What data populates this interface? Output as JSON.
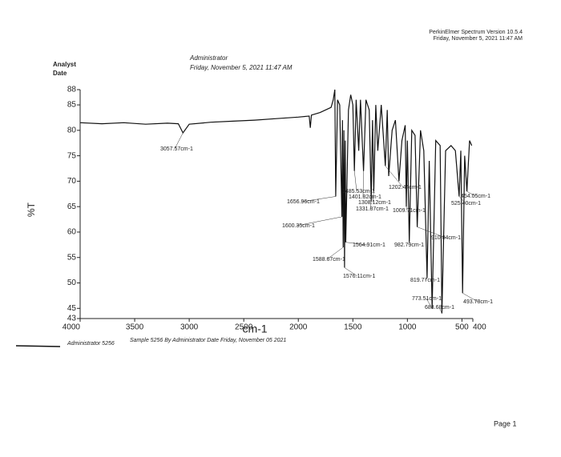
{
  "header": {
    "software": "PerkinElmer Spectrum Version 10.5.4",
    "datetime": "Friday, November 5, 2021 11:47 AM"
  },
  "info": {
    "analyst_label": "Analyst",
    "date_label": "Date",
    "analyst": "Administrator",
    "date": "Friday, November 5, 2021 11:47 AM"
  },
  "footer": {
    "page": "Page 1"
  },
  "chart_data": {
    "type": "line",
    "xlabel": "cm-1",
    "ylabel": "%T",
    "legend_note": "Sample 5256 By Administrator Date Friday, November 05 2021",
    "xlim": [
      4000,
      400
    ],
    "ylim": [
      43,
      88
    ],
    "xticks": [
      4000,
      3500,
      3000,
      2500,
      2000,
      1500,
      1000,
      500,
      400
    ],
    "yticks": [
      43,
      45,
      50,
      55,
      60,
      65,
      70,
      75,
      80,
      85,
      88
    ],
    "x": [
      4000,
      3800,
      3600,
      3400,
      3200,
      3100,
      3057.57,
      3000,
      2800,
      2600,
      2400,
      2200,
      2000,
      1900,
      1890,
      1880,
      1800,
      1700,
      1680,
      1665,
      1656.96,
      1640,
      1620,
      1600.35,
      1595,
      1588.67,
      1582,
      1576.11,
      1570,
      1564.91,
      1540,
      1520,
      1500,
      1485.53,
      1470,
      1446,
      1430,
      1401.82,
      1380,
      1350,
      1331.87,
      1320,
      1308.12,
      1290,
      1271,
      1240,
      1202.44,
      1185,
      1171.41,
      1140,
      1110,
      1077.1,
      1050,
      1020,
      1009.71,
      1000,
      982.79,
      960,
      930,
      910.04,
      880,
      850,
      819.77,
      800,
      773.51,
      740,
      700,
      683.68,
      650,
      600,
      560,
      525.4,
      510,
      493.78,
      475,
      454.05,
      430,
      410
    ],
    "series": [
      {
        "name": "Administrator 5256",
        "color": "#111111",
        "values": [
          81.5,
          81.3,
          81.5,
          81.2,
          81.4,
          81.3,
          79.5,
          81.2,
          81.6,
          81.8,
          82,
          82.3,
          82.6,
          82.8,
          80.5,
          83,
          83.5,
          84.5,
          86,
          88,
          67,
          86,
          85,
          63,
          82,
          57,
          80,
          53,
          78,
          58,
          84,
          87,
          85,
          72,
          86,
          76,
          86,
          72,
          86,
          84,
          66,
          82,
          68,
          85,
          76,
          85,
          73,
          84,
          71,
          80,
          82,
          70,
          78,
          81,
          65,
          78,
          58,
          80,
          79,
          61,
          80,
          76,
          51,
          74,
          45,
          78,
          77,
          44,
          76,
          77,
          76,
          67,
          76,
          48,
          75,
          68,
          78,
          77
        ]
      }
    ],
    "annotations": [
      {
        "label": "3057.57cm-1",
        "x": 3057.57,
        "y": 79.5
      },
      {
        "label": "1656.96cm-1",
        "x": 1656.96,
        "y": 67
      },
      {
        "label": "1600.35cm-1",
        "x": 1600.35,
        "y": 63
      },
      {
        "label": "1588.67cm-1",
        "x": 1588.67,
        "y": 57
      },
      {
        "label": "1576.11cm-1",
        "x": 1576.11,
        "y": 53
      },
      {
        "label": "1564.91cm-1",
        "x": 1564.91,
        "y": 58
      },
      {
        "label": "1485.53cm-1",
        "x": 1485.53,
        "y": 72
      },
      {
        "label": "1401.82cm-1",
        "x": 1401.82,
        "y": 72
      },
      {
        "label": "1331.87cm-1",
        "x": 1331.87,
        "y": 66
      },
      {
        "label": "1308.12cm-1",
        "x": 1308.12,
        "y": 68
      },
      {
        "label": "1202.44cm-1",
        "x": 1202.44,
        "y": 73
      },
      {
        "label": "1009.71cm-1",
        "x": 1009.71,
        "y": 65
      },
      {
        "label": "982.79cm-1",
        "x": 982.79,
        "y": 58
      },
      {
        "label": "910.04cm-1",
        "x": 910.04,
        "y": 61
      },
      {
        "label": "819.77cm-1",
        "x": 819.77,
        "y": 51
      },
      {
        "label": "773.51cm-1",
        "x": 773.51,
        "y": 45
      },
      {
        "label": "683.68cm-1",
        "x": 683.68,
        "y": 44
      },
      {
        "label": "525.40cm-1",
        "x": 525.4,
        "y": 67
      },
      {
        "label": "493.78cm-1",
        "x": 493.78,
        "y": 48
      },
      {
        "label": "454.05cm-1",
        "x": 454.05,
        "y": 68
      }
    ]
  }
}
